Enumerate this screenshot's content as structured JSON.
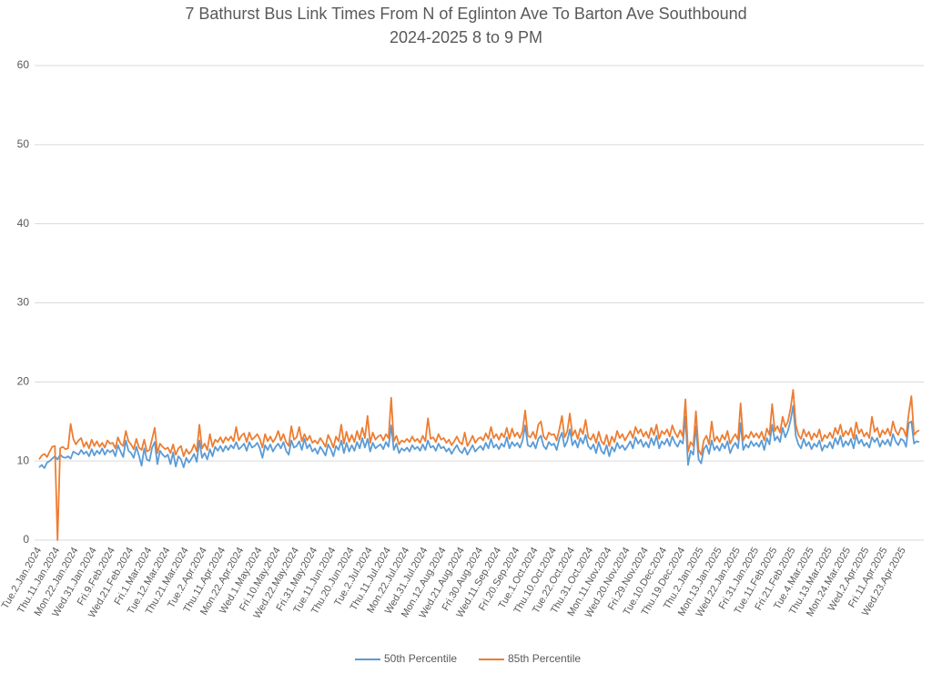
{
  "chart_data": {
    "type": "line",
    "title": "7 Bathurst Bus Link Times From N of Eglinton Ave To Barton Ave Southbound",
    "subtitle": "2024-2025 8 to 9 PM",
    "ylim": [
      0,
      60
    ],
    "yticks": [
      0,
      10,
      20,
      30,
      40,
      50,
      60
    ],
    "grid": true,
    "legend": "bottom",
    "categories": [
      "Tue.2.Jan.2024",
      null,
      null,
      null,
      null,
      null,
      null,
      "Thu.11.Jan.2024",
      null,
      null,
      null,
      null,
      null,
      null,
      "Mon.22.Jan.2024",
      null,
      null,
      null,
      null,
      null,
      null,
      "Wed.31.Jan.2024",
      null,
      null,
      null,
      null,
      null,
      null,
      "Fri.9.Feb.2024",
      null,
      null,
      null,
      null,
      null,
      null,
      "Wed.21.Feb.2024",
      null,
      null,
      null,
      null,
      null,
      null,
      "Fri.1.Mar.2024",
      null,
      null,
      null,
      null,
      null,
      null,
      "Tue.12.Mar.2024",
      null,
      null,
      null,
      null,
      null,
      null,
      "Thu.21.Mar.2024",
      null,
      null,
      null,
      null,
      null,
      null,
      "Tue.2.Apr.2024",
      null,
      null,
      null,
      null,
      null,
      null,
      "Thu.11.Apr.2024",
      null,
      null,
      null,
      null,
      null,
      null,
      "Mon.22.Apr.2024",
      null,
      null,
      null,
      null,
      null,
      null,
      "Wed.1.May.2024",
      null,
      null,
      null,
      null,
      null,
      null,
      "Fri.10.May.2024",
      null,
      null,
      null,
      null,
      null,
      null,
      "Wed.22.May.2024",
      null,
      null,
      null,
      null,
      null,
      null,
      "Fri.31.May.2024",
      null,
      null,
      null,
      null,
      null,
      null,
      "Tue.11.Jun.2024",
      null,
      null,
      null,
      null,
      null,
      null,
      "Thu.20.Jun.2024",
      null,
      null,
      null,
      null,
      null,
      null,
      "Tue.2.Jul.2024",
      null,
      null,
      null,
      null,
      null,
      null,
      "Thu.11.Jul.2024",
      null,
      null,
      null,
      null,
      null,
      null,
      "Mon.22.Jul.2024",
      null,
      null,
      null,
      null,
      null,
      null,
      "Wed.31.Jul.2024",
      null,
      null,
      null,
      null,
      null,
      null,
      "Mon.12.Aug.2024",
      null,
      null,
      null,
      null,
      null,
      null,
      "Wed.21.Aug.2024",
      null,
      null,
      null,
      null,
      null,
      null,
      "Fri.30.Aug.2024",
      null,
      null,
      null,
      null,
      null,
      null,
      "Wed.11.Sep.2024",
      null,
      null,
      null,
      null,
      null,
      null,
      "Fri.20.Sep.2024",
      null,
      null,
      null,
      null,
      null,
      null,
      "Tue.1.Oct.2024",
      null,
      null,
      null,
      null,
      null,
      null,
      "Thu.10.Oct.2024",
      null,
      null,
      null,
      null,
      null,
      null,
      "Tue.22.Oct.2024",
      null,
      null,
      null,
      null,
      null,
      null,
      "Thu.31.Oct.2024",
      null,
      null,
      null,
      null,
      null,
      null,
      "Mon.11.Nov.2024",
      null,
      null,
      null,
      null,
      null,
      null,
      "Wed.20.Nov.2024",
      null,
      null,
      null,
      null,
      null,
      null,
      "Fri.29.Nov.2024",
      null,
      null,
      null,
      null,
      null,
      null,
      "Tue.10.Dec.2024",
      null,
      null,
      null,
      null,
      null,
      null,
      "Thu.19.Dec.2024",
      null,
      null,
      null,
      null,
      null,
      null,
      "Thu.2.Jan.2025",
      null,
      null,
      null,
      null,
      null,
      null,
      "Mon.13.Jan.2025",
      null,
      null,
      null,
      null,
      null,
      null,
      "Wed.22.Jan.2025",
      null,
      null,
      null,
      null,
      null,
      null,
      "Fri.31.Jan.2025",
      null,
      null,
      null,
      null,
      null,
      null,
      "Tue.11.Feb.2025",
      null,
      null,
      null,
      null,
      null,
      null,
      "Fri.21.Feb.2025",
      null,
      null,
      null,
      null,
      null,
      null,
      "Tue.4.Mar.2025",
      null,
      null,
      null,
      null,
      null,
      null,
      "Thu.13.Mar.2025",
      null,
      null,
      null,
      null,
      null,
      null,
      "Mon.24.Mar.2025",
      null,
      null,
      null,
      null,
      null,
      null,
      "Wed.2.Apr.2025",
      null,
      null,
      null,
      null,
      null,
      null,
      "Fri.11.Apr.2025",
      null,
      null,
      null,
      null,
      null,
      null,
      "Wed.23.Apr.2025",
      null,
      null,
      null,
      null,
      null,
      null
    ],
    "series": [
      {
        "name": "50th Percentile",
        "color": "#5b9bd5",
        "values": [
          9.2,
          9.5,
          9.1,
          9.8,
          10.0,
          10.3,
          10.6,
          10.2,
          10.8,
          10.5,
          10.4,
          10.6,
          10.3,
          11.2,
          11.0,
          10.8,
          11.4,
          10.9,
          11.2,
          10.6,
          11.5,
          10.7,
          11.3,
          10.9,
          11.6,
          10.8,
          11.4,
          11.1,
          11.4,
          10.6,
          12.0,
          11.2,
          10.5,
          12.6,
          11.3,
          11.0,
          10.4,
          11.8,
          10.7,
          9.4,
          11.6,
          10.2,
          10.0,
          11.7,
          12.4,
          9.6,
          11.3,
          10.8,
          10.5,
          10.8,
          9.6,
          11.1,
          9.3,
          10.6,
          10.2,
          9.2,
          10.4,
          9.8,
          10.3,
          10.9,
          9.9,
          12.6,
          10.4,
          11.0,
          10.2,
          11.5,
          10.6,
          11.8,
          11.3,
          11.9,
          11.2,
          11.9,
          11.4,
          12.0,
          11.6,
          12.4,
          11.5,
          11.8,
          12.2,
          11.3,
          12.4,
          11.7,
          11.9,
          12.3,
          11.6,
          10.4,
          12.0,
          11.4,
          12.1,
          11.2,
          11.8,
          12.2,
          11.6,
          12.4,
          11.3,
          10.8,
          12.6,
          11.7,
          11.9,
          12.5,
          11.4,
          12.8,
          11.6,
          12.1,
          11.2,
          11.6,
          10.9,
          11.8,
          11.3,
          10.7,
          12.1,
          11.5,
          10.6,
          11.9,
          11.4,
          12.6,
          11.0,
          12.3,
          11.2,
          12.0,
          11.3,
          12.4,
          11.6,
          12.9,
          11.7,
          12.8,
          11.2,
          12.3,
          11.6,
          11.9,
          12.1,
          11.5,
          12.4,
          11.8,
          14.5,
          11.4,
          12.2,
          11.0,
          11.6,
          11.3,
          11.7,
          11.2,
          12.0,
          11.5,
          11.8,
          11.3,
          12.1,
          11.4,
          12.6,
          11.7,
          11.9,
          11.3,
          12.2,
          11.6,
          11.8,
          11.2,
          11.6,
          10.9,
          11.5,
          12.0,
          11.3,
          11.0,
          11.7,
          10.8,
          11.4,
          12.0,
          11.2,
          11.6,
          11.9,
          11.4,
          12.3,
          11.6,
          12.8,
          11.7,
          12.1,
          11.5,
          12.2,
          11.8,
          13.0,
          11.6,
          12.4,
          11.9,
          12.3,
          11.7,
          12.6,
          14.5,
          12.0,
          11.8,
          12.4,
          11.6,
          12.8,
          13.2,
          11.9,
          11.5,
          12.4,
          12.0,
          12.2,
          11.4,
          12.8,
          13.6,
          11.8,
          12.5,
          14.0,
          12.0,
          12.6,
          11.7,
          12.9,
          12.2,
          13.3,
          11.9,
          11.5,
          12.1,
          11.0,
          12.4,
          11.3,
          10.9,
          12.0,
          10.6,
          11.8,
          11.2,
          12.3,
          11.6,
          12.0,
          11.4,
          11.9,
          12.5,
          11.6,
          13.0,
          12.2,
          12.7,
          11.8,
          12.4,
          11.7,
          12.9,
          12.0,
          13.2,
          11.6,
          12.5,
          12.1,
          12.8,
          11.9,
          13.1,
          12.3,
          11.8,
          12.6,
          12.2,
          15.6,
          9.5,
          11.3,
          10.8,
          14.4,
          10.2,
          9.7,
          11.5,
          12.0,
          10.9,
          12.6,
          11.4,
          11.9,
          11.3,
          12.2,
          11.6,
          12.5,
          11.0,
          11.8,
          12.3,
          11.6,
          14.8,
          11.4,
          12.1,
          11.7,
          12.5,
          11.9,
          12.3,
          11.8,
          12.6,
          11.4,
          12.9,
          12.1,
          14.6,
          12.6,
          13.1,
          12.4,
          14.2,
          13.0,
          13.8,
          15.1,
          17.0,
          13.2,
          12.1,
          11.6,
          12.8,
          11.9,
          12.4,
          11.5,
          12.2,
          11.8,
          12.6,
          11.3,
          12.0,
          11.7,
          12.4,
          11.6,
          12.9,
          12.1,
          13.2,
          11.8,
          12.5,
          12.0,
          12.8,
          11.6,
          13.3,
          12.2,
          12.7,
          11.9,
          12.3,
          11.7,
          13.0,
          12.4,
          12.9,
          11.8,
          12.6,
          12.1,
          12.7,
          11.9,
          13.4,
          12.5,
          12.0,
          12.8,
          12.6,
          11.8,
          14.8,
          15.0,
          12.2,
          12.5,
          12.4
        ]
      },
      {
        "name": "85th Percentile",
        "color": "#ed7d31",
        "values": [
          10.2,
          10.7,
          10.9,
          10.5,
          11.2,
          11.8,
          11.9,
          0,
          11.6,
          11.8,
          11.5,
          11.6,
          14.7,
          12.8,
          12.1,
          12.6,
          12.9,
          11.8,
          12.4,
          11.6,
          12.7,
          11.9,
          12.5,
          11.8,
          12.3,
          11.7,
          12.6,
          12.2,
          12.3,
          11.6,
          13.0,
          12.2,
          11.9,
          13.8,
          12.5,
          12.1,
          11.5,
          12.8,
          11.7,
          11.4,
          12.7,
          11.2,
          11.4,
          12.8,
          14.2,
          11.0,
          12.2,
          11.8,
          11.5,
          11.7,
          11.0,
          12.1,
          10.8,
          11.6,
          11.9,
          10.6,
          11.5,
          10.9,
          11.3,
          12.1,
          11.2,
          14.6,
          11.6,
          12.2,
          11.4,
          13.4,
          11.8,
          12.7,
          12.4,
          13.0,
          12.3,
          13.0,
          12.6,
          13.1,
          12.5,
          14.3,
          12.6,
          13.2,
          13.5,
          12.4,
          13.6,
          12.7,
          13.0,
          13.4,
          12.8,
          11.7,
          13.4,
          12.5,
          13.1,
          12.4,
          12.9,
          13.8,
          12.6,
          13.4,
          12.4,
          11.9,
          14.4,
          12.7,
          13.0,
          14.3,
          12.5,
          13.4,
          12.6,
          13.2,
          12.3,
          12.6,
          12.2,
          12.9,
          12.4,
          11.8,
          13.3,
          12.6,
          11.7,
          13.1,
          12.5,
          14.6,
          12.2,
          13.7,
          12.4,
          13.3,
          12.4,
          13.8,
          12.7,
          14.2,
          12.9,
          15.7,
          12.3,
          13.6,
          12.7,
          13.1,
          13.3,
          12.6,
          13.4,
          12.9,
          18.0,
          12.5,
          13.2,
          12.1,
          12.6,
          12.4,
          12.8,
          12.4,
          13.1,
          12.5,
          12.8,
          12.3,
          13.2,
          12.5,
          15.4,
          12.8,
          13.0,
          12.4,
          13.4,
          12.7,
          12.9,
          12.3,
          12.7,
          12.0,
          12.5,
          13.1,
          12.4,
          12.1,
          13.6,
          11.9,
          12.5,
          13.2,
          12.3,
          12.8,
          13.0,
          12.6,
          13.5,
          12.8,
          14.3,
          12.9,
          13.4,
          12.7,
          13.5,
          13.0,
          14.2,
          12.8,
          14.1,
          13.1,
          13.6,
          12.9,
          13.8,
          16.4,
          13.2,
          13.0,
          13.7,
          12.8,
          14.6,
          15.0,
          13.1,
          12.7,
          13.6,
          13.3,
          13.4,
          12.6,
          14.0,
          15.7,
          13.0,
          13.7,
          16.0,
          13.2,
          13.9,
          12.8,
          14.1,
          13.4,
          15.2,
          13.0,
          12.7,
          13.4,
          12.3,
          13.7,
          12.5,
          12.1,
          13.3,
          11.9,
          13.1,
          12.4,
          13.8,
          12.9,
          13.4,
          12.6,
          13.2,
          13.8,
          12.9,
          14.3,
          13.5,
          14.0,
          13.1,
          13.7,
          12.9,
          14.2,
          13.3,
          14.6,
          12.8,
          13.8,
          13.4,
          14.0,
          13.1,
          14.5,
          13.6,
          13.0,
          13.9,
          13.1,
          17.8,
          11.2,
          12.4,
          11.9,
          16.3,
          11.4,
          10.8,
          12.6,
          13.2,
          12.1,
          15.0,
          12.5,
          13.1,
          12.4,
          13.3,
          12.7,
          13.8,
          12.2,
          12.9,
          13.4,
          12.7,
          17.3,
          12.6,
          13.3,
          12.9,
          13.7,
          13.0,
          13.5,
          12.9,
          13.7,
          12.6,
          14.1,
          13.3,
          17.2,
          13.8,
          14.4,
          13.6,
          15.6,
          14.3,
          15.0,
          16.6,
          19.0,
          14.6,
          13.3,
          12.8,
          14.0,
          13.1,
          13.7,
          12.7,
          13.5,
          13.0,
          14.0,
          12.5,
          13.3,
          12.9,
          13.6,
          12.9,
          14.2,
          13.4,
          14.6,
          13.1,
          13.8,
          13.3,
          14.2,
          12.8,
          14.9,
          13.5,
          14.0,
          13.1,
          13.6,
          12.9,
          15.6,
          13.7,
          14.2,
          13.0,
          13.9,
          13.4,
          14.1,
          13.2,
          15.0,
          13.8,
          13.3,
          14.2,
          14.0,
          13.1,
          16.0,
          18.2,
          13.3,
          13.7,
          13.9
        ]
      }
    ]
  }
}
